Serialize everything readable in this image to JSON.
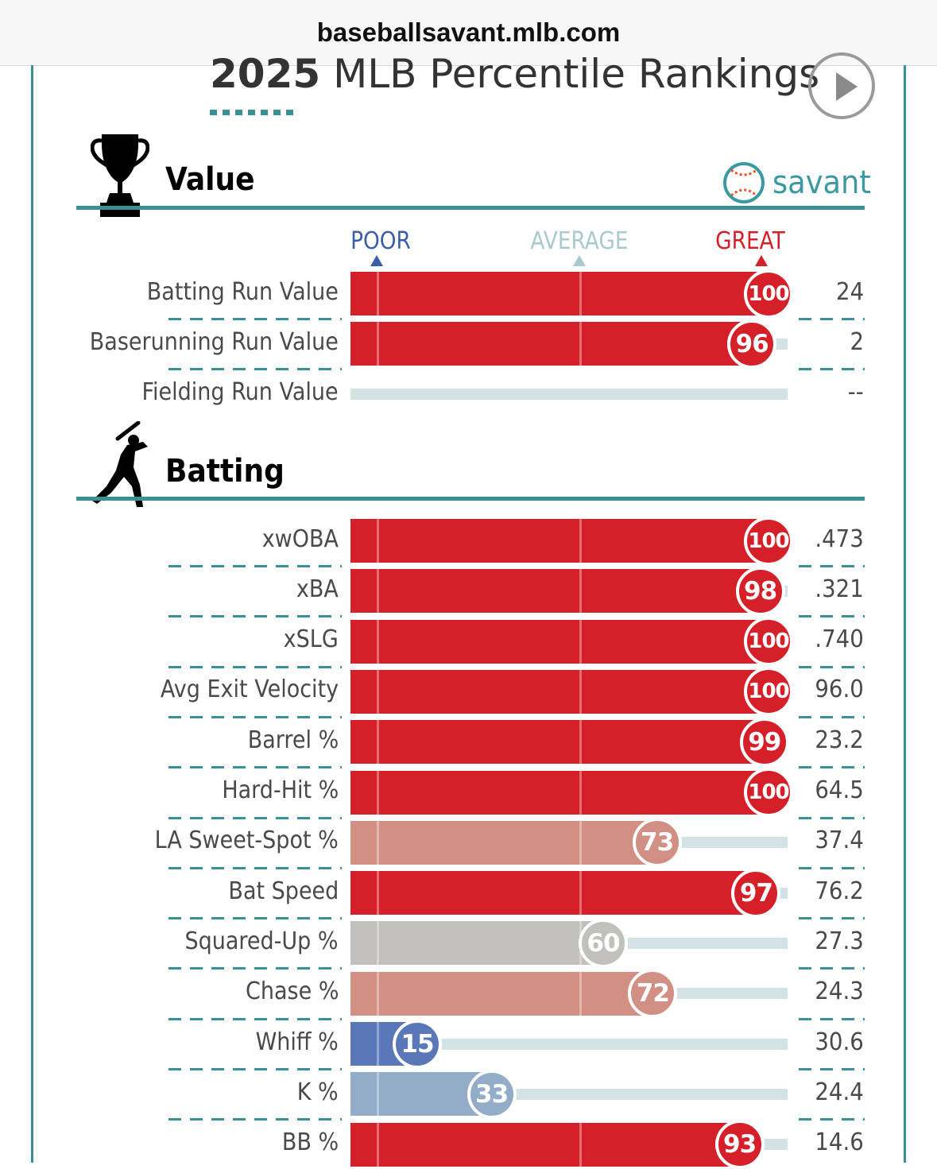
{
  "browser": {
    "url": "baseballsavant.mlb.com"
  },
  "header": {
    "title_year": "2025",
    "title_rest": "MLB Percentile Rankings",
    "play_icon": "play-icon"
  },
  "brand": {
    "name": "savant",
    "logo_icon": "baseball-logo-icon"
  },
  "scale": {
    "poor": "POOR",
    "average": "AVERAGE",
    "great": "GREAT"
  },
  "colors": {
    "accent": "#3b8f96",
    "great": "#d62029",
    "poor": "#5a78b8",
    "average": "#bfbfbf",
    "track": "#d3e3e5"
  },
  "sections": [
    {
      "title": "Value",
      "icon": "trophy-icon",
      "rows": [
        {
          "label": "Batting Run Value",
          "percentile": 100,
          "value": "24"
        },
        {
          "label": "Baserunning Run Value",
          "percentile": 96,
          "value": "2"
        },
        {
          "label": "Fielding Run Value",
          "percentile": null,
          "value": "--"
        }
      ]
    },
    {
      "title": "Batting",
      "icon": "batter-icon",
      "rows": [
        {
          "label": "xwOBA",
          "percentile": 100,
          "value": ".473"
        },
        {
          "label": "xBA",
          "percentile": 98,
          "value": ".321"
        },
        {
          "label": "xSLG",
          "percentile": 100,
          "value": ".740"
        },
        {
          "label": "Avg Exit Velocity",
          "percentile": 100,
          "value": "96.0"
        },
        {
          "label": "Barrel %",
          "percentile": 99,
          "value": "23.2"
        },
        {
          "label": "Hard-Hit %",
          "percentile": 100,
          "value": "64.5"
        },
        {
          "label": "LA Sweet-Spot %",
          "percentile": 73,
          "value": "37.4"
        },
        {
          "label": "Bat Speed",
          "percentile": 97,
          "value": "76.2"
        },
        {
          "label": "Squared-Up %",
          "percentile": 60,
          "value": "27.3"
        },
        {
          "label": "Chase %",
          "percentile": 72,
          "value": "24.3"
        },
        {
          "label": "Whiff %",
          "percentile": 15,
          "value": "30.6"
        },
        {
          "label": "K %",
          "percentile": 33,
          "value": "24.4"
        },
        {
          "label": "BB %",
          "percentile": 93,
          "value": "14.6"
        }
      ]
    }
  ]
}
